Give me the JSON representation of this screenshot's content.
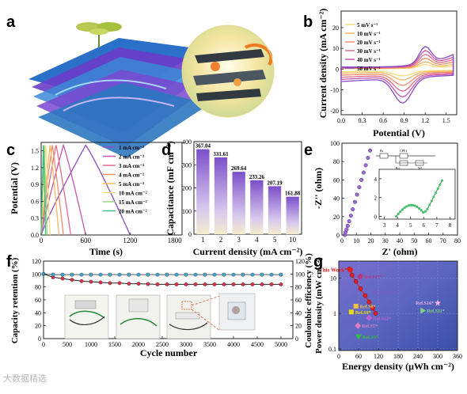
{
  "panels": {
    "a": "a",
    "b": "b",
    "c": "c",
    "d": "d",
    "e": "e",
    "f": "f",
    "g": "g"
  },
  "b": {
    "xlabel": "Potential (V)",
    "ylabel": "Current density (mA cm⁻²)",
    "xticks": [
      "0.0",
      "0.3",
      "0.6",
      "0.9",
      "1.2",
      "1.5"
    ],
    "yticks": [
      "20",
      "10",
      "0",
      "-10",
      "-20"
    ],
    "legend": [
      "5 mV s⁻¹",
      "10 mV s⁻¹",
      "20 mV s⁻¹",
      "30 mV s⁻¹",
      "40 mV s⁻¹",
      "50 mV s⁻¹"
    ],
    "colors": [
      "#f5dc7a",
      "#f2b864",
      "#f08a6a",
      "#e06a8c",
      "#c455b0",
      "#8a4cc8"
    ]
  },
  "c": {
    "xlabel": "Time (s)",
    "ylabel": "Potential (V)",
    "xticks": [
      "0",
      "600",
      "1200",
      "1800"
    ],
    "yticks": [
      "0.0",
      "0.3",
      "0.6",
      "0.9",
      "1.2",
      "1.5"
    ],
    "legend": [
      "1 mA cm⁻²",
      "2 mA cm⁻²",
      "3 mA cm⁻²",
      "4 mA cm⁻²",
      "5 mA cm⁻²",
      "10 mA cm⁻²",
      "15 mA cm⁻²",
      "20 mA cm⁻²"
    ],
    "colors": [
      "#8a4cc8",
      "#c455b0",
      "#e06a8c",
      "#f08a6a",
      "#f2b864",
      "#f5dc7a",
      "#9ad47a",
      "#3cc08a"
    ],
    "durations": [
      1200,
      600,
      400,
      300,
      240,
      120,
      80,
      60
    ]
  },
  "d": {
    "xlabel": "Current density (mA cm⁻²)",
    "ylabel": "Capacitance (mF cm⁻²)",
    "yticks": [
      "0",
      "100",
      "200",
      "300",
      "400"
    ]
  },
  "e": {
    "xlabel": "Z' (ohm)",
    "ylabel": "-Z'' (ohm)",
    "xticks": [
      "0",
      "10",
      "20",
      "30",
      "40",
      "50",
      "60",
      "70",
      "80"
    ],
    "yticks": [
      "0",
      "20",
      "40",
      "60",
      "80",
      "100"
    ],
    "inset_xticks": [
      "3",
      "4",
      "5",
      "6",
      "7",
      "8"
    ],
    "inset_yticks": [
      "0",
      "2",
      "4"
    ],
    "circuit": [
      "Rs",
      "CPE1",
      "Rct",
      "W1"
    ]
  },
  "f": {
    "xlabel": "Cycle number",
    "ylabel_left": "Capacity retention (%)",
    "ylabel_right": "Coulombic efficiency (%)",
    "xticks": [
      "0",
      "500",
      "1000",
      "1500",
      "2000",
      "2500",
      "3000",
      "3500",
      "4000",
      "4500",
      "5000"
    ],
    "yticks": [
      "0",
      "20",
      "40",
      "60",
      "80",
      "100",
      "120"
    ]
  },
  "g": {
    "xlabel": "Energy density (μWh cm⁻²)",
    "ylabel": "Power density (mW cm⁻²)",
    "xticks": [
      "0",
      "60",
      "120",
      "180",
      "240",
      "300",
      "360"
    ],
    "yticks": [
      "0.1",
      "1",
      "10"
    ],
    "points": [
      {
        "label": "This Work*",
        "x": 35,
        "y": 17,
        "color": "#e02020"
      },
      {
        "label": "Ref.S17*",
        "x": 65,
        "y": 11,
        "color": "#b03a7a"
      },
      {
        "label": "Ref.S23*",
        "x": 110,
        "y": 4,
        "color": "#7a5cc8"
      },
      {
        "label": "Ref.S16*",
        "x": 300,
        "y": 2,
        "color": "#f0b0e8"
      },
      {
        "label": "Ref.S11*",
        "x": 255,
        "y": 1.2,
        "color": "#80d080"
      },
      {
        "label": "Ref.S8*",
        "x": 52,
        "y": 1.6,
        "color": "#f2c040"
      },
      {
        "label": "Ref.S9*",
        "x": 38,
        "y": 1.1,
        "color": "#e8e000"
      },
      {
        "label": "Ref.S22*",
        "x": 92,
        "y": 0.75,
        "color": "#c060d0"
      },
      {
        "label": "Ref.S5*",
        "x": 58,
        "y": 0.45,
        "color": "#e080c0"
      },
      {
        "label": "Ref.S3*",
        "x": 60,
        "y": 0.22,
        "color": "#30c040"
      }
    ]
  },
  "chart_data": [
    {
      "panel": "b",
      "type": "line",
      "xlabel": "Potential (V)",
      "ylabel": "Current density (mA cm⁻²)",
      "xlim": [
        0,
        1.65
      ],
      "ylim": [
        -22,
        28
      ],
      "series": [
        {
          "name": "5 mV s⁻¹"
        },
        {
          "name": "10 mV s⁻¹"
        },
        {
          "name": "20 mV s⁻¹"
        },
        {
          "name": "30 mV s⁻¹"
        },
        {
          "name": "40 mV s⁻¹"
        },
        {
          "name": "50 mV s⁻¹"
        }
      ]
    },
    {
      "panel": "c",
      "type": "line",
      "xlabel": "Time (s)",
      "ylabel": "Potential (V)",
      "xlim": [
        0,
        1900
      ],
      "ylim": [
        0,
        1.65
      ],
      "series": [
        {
          "name": "1 mA cm⁻²"
        },
        {
          "name": "2 mA cm⁻²"
        },
        {
          "name": "3 mA cm⁻²"
        },
        {
          "name": "4 mA cm⁻²"
        },
        {
          "name": "5 mA cm⁻²"
        },
        {
          "name": "10 mA cm⁻²"
        },
        {
          "name": "15 mA cm⁻²"
        },
        {
          "name": "20 mA cm⁻²"
        }
      ]
    },
    {
      "panel": "d",
      "type": "bar",
      "categories": [
        "1",
        "2",
        "3",
        "4",
        "5",
        "10"
      ],
      "values": [
        367.04,
        331.61,
        269.64,
        233.26,
        207.19,
        161.88
      ],
      "xlabel": "Current density (mA cm⁻²)",
      "ylabel": "Capacitance (mF cm⁻²)",
      "ylim": [
        0,
        400
      ]
    },
    {
      "panel": "e",
      "type": "scatter",
      "xlabel": "Z' (ohm)",
      "ylabel": "-Z'' (ohm)",
      "xlim": [
        0,
        80
      ],
      "ylim": [
        0,
        100
      ],
      "x": [
        2.0,
        2.5,
        3.2,
        4.0,
        5.0,
        6.2,
        7.5,
        9.0,
        10.5,
        12.0,
        13.5,
        15.0,
        16.5,
        18.0,
        19.5
      ],
      "y": [
        0,
        3,
        6,
        10,
        15,
        21,
        28,
        36,
        44,
        52,
        60,
        68,
        76,
        84,
        92
      ]
    },
    {
      "panel": "f",
      "type": "line",
      "xlabel": "Cycle number",
      "ylabel": "Capacity retention (%)",
      "xlim": [
        0,
        5000
      ],
      "ylim": [
        0,
        120
      ],
      "x": [
        0,
        200,
        400,
        600,
        800,
        1000,
        1200,
        1400,
        1600,
        1800,
        2000,
        2200,
        2400,
        2600,
        2800,
        3000,
        3200,
        3400,
        3600,
        3800,
        4000,
        4200,
        4400,
        4600,
        4800,
        5000
      ],
      "series": [
        {
          "name": "Capacity retention",
          "values": [
            100,
            95,
            93,
            91,
            89,
            88,
            87,
            86,
            86,
            85,
            85,
            84.5,
            84,
            84,
            84,
            84,
            84,
            84,
            84,
            84,
            84,
            84,
            84,
            84,
            84,
            84
          ]
        },
        {
          "name": "Coulombic efficiency",
          "values": [
            100,
            99,
            99,
            99,
            99,
            99,
            99,
            99,
            99,
            99,
            99,
            99,
            99,
            99,
            99,
            99,
            99,
            99,
            99,
            99,
            99,
            99,
            99,
            99,
            99,
            99
          ]
        }
      ]
    },
    {
      "panel": "g",
      "type": "scatter",
      "xlabel": "Energy density (μWh cm⁻²)",
      "ylabel": "Power density (mW cm⁻²)",
      "xlim": [
        0,
        360
      ],
      "ylim": [
        0.1,
        30
      ],
      "yscale": "log",
      "x": [
        35,
        65,
        110,
        300,
        255,
        52,
        38,
        92,
        58,
        60
      ],
      "y": [
        17,
        11,
        4,
        2,
        1.2,
        1.6,
        1.1,
        0.75,
        0.45,
        0.22
      ]
    }
  ],
  "watermark": "大数据精选"
}
